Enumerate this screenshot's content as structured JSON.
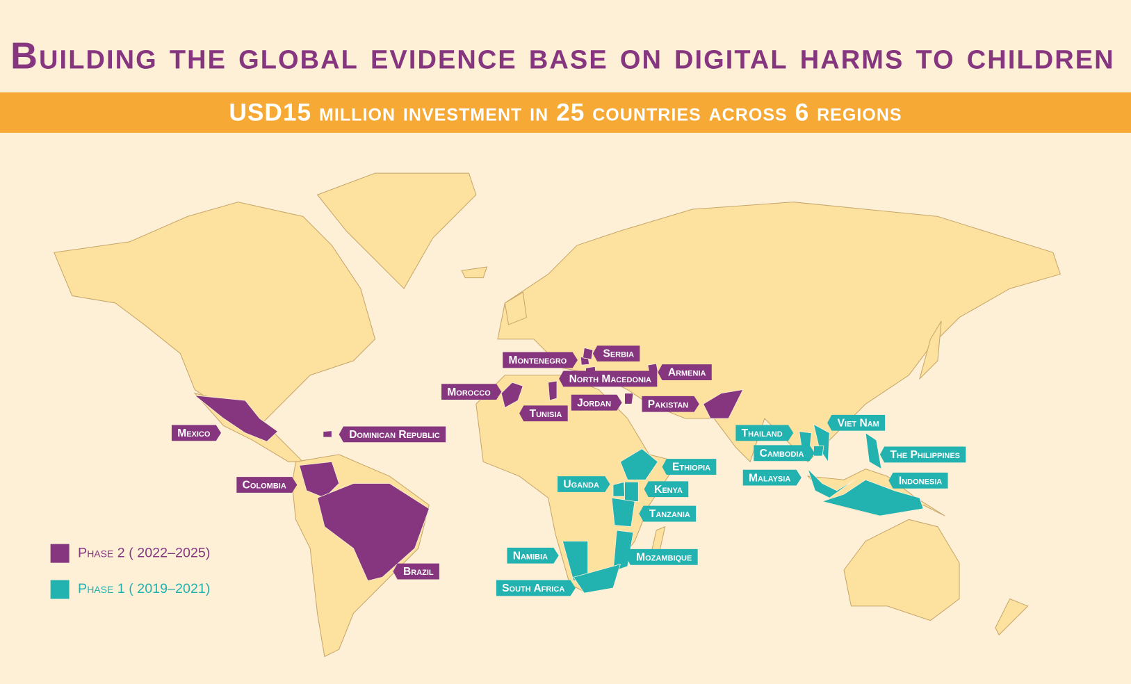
{
  "header": {
    "title": "Building the global evidence base on digital harms to children",
    "subtitle": "USD15 million investment in 25 countries across 6 regions"
  },
  "phases": [
    {
      "label": "Phase 2 ( 2022–2025)",
      "color": "#86367f",
      "countries": [
        "Montenegro",
        "Serbia",
        "North Macedonia",
        "Armenia",
        "Morocco",
        "Tunisia",
        "Jordan",
        "Pakistan",
        "Mexico",
        "Dominican Republic",
        "Colombia",
        "Brazil"
      ]
    },
    {
      "label": "Phase 1 ( 2019–2021)",
      "color": "#22b2b0",
      "countries": [
        "Viet Nam",
        "Thailand",
        "Cambodia",
        "The Philippines",
        "Malaysia",
        "Indonesia",
        "Ethiopia",
        "Uganda",
        "Kenya",
        "Tanzania",
        "Namibia",
        "Mozambique",
        "South Africa"
      ]
    }
  ]
}
